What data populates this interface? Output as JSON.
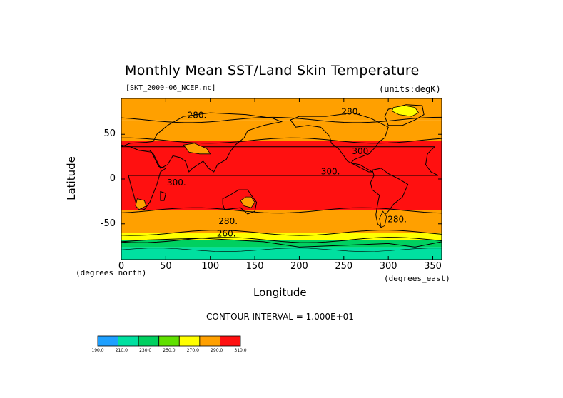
{
  "chart_data": {
    "type": "heatmap",
    "title": "Monthly Mean SST/Land Skin Temperature",
    "subtitle_left": "[SKT_2000-06_NCEP.nc]",
    "subtitle_right": "(units:degK)",
    "xlabel": "Longitude",
    "ylabel": "Latitude",
    "x_units": "(degrees_north)",
    "x_units_right": "(degrees_east)",
    "xlim": [
      0,
      360
    ],
    "ylim": [
      -90,
      90
    ],
    "x_ticks": [
      "0",
      "50",
      "100",
      "150",
      "200",
      "250",
      "300",
      "350"
    ],
    "x_tick_values": [
      0,
      50,
      100,
      150,
      200,
      250,
      300,
      350
    ],
    "y_ticks": [
      "50",
      "0",
      "-50"
    ],
    "y_tick_values": [
      50,
      0,
      -50
    ],
    "contour_interval_text": "CONTOUR INTERVAL = 1.000E+01",
    "contour_labels": [
      {
        "text": "280.",
        "lon": 85,
        "lat": 68
      },
      {
        "text": "280.",
        "lon": 258,
        "lat": 72
      },
      {
        "text": "300.",
        "lon": 270,
        "lat": 28
      },
      {
        "text": "300.",
        "lon": 235,
        "lat": 5
      },
      {
        "text": "300.",
        "lon": 62,
        "lat": -7
      },
      {
        "text": "280.",
        "lon": 120,
        "lat": -50
      },
      {
        "text": "280.",
        "lon": 310,
        "lat": -48
      },
      {
        "text": "260.",
        "lon": 118,
        "lat": -64
      }
    ],
    "zones": [
      {
        "lat_top": 90,
        "lat_bottom": 66,
        "value": 280
      },
      {
        "lat_top": 66,
        "lat_bottom": 43,
        "value": 280
      },
      {
        "lat_top": 43,
        "lat_bottom": -35,
        "value": 300
      },
      {
        "lat_top": -35,
        "lat_bottom": -60,
        "value": 280
      },
      {
        "lat_top": -60,
        "lat_bottom": -68,
        "value": 270
      },
      {
        "lat_top": -68,
        "lat_bottom": -76,
        "value": 230
      },
      {
        "lat_top": -76,
        "lat_bottom": -90,
        "value": 210
      }
    ],
    "colorbar": {
      "levels": [
        "190.0",
        "210.0",
        "230.0",
        "250.0",
        "270.0",
        "290.0",
        "310.0"
      ],
      "colors": [
        "#1ea0ff",
        "#00e0a0",
        "#00d060",
        "#60e000",
        "#ffff00",
        "#ffa000",
        "#ff1010"
      ]
    }
  }
}
